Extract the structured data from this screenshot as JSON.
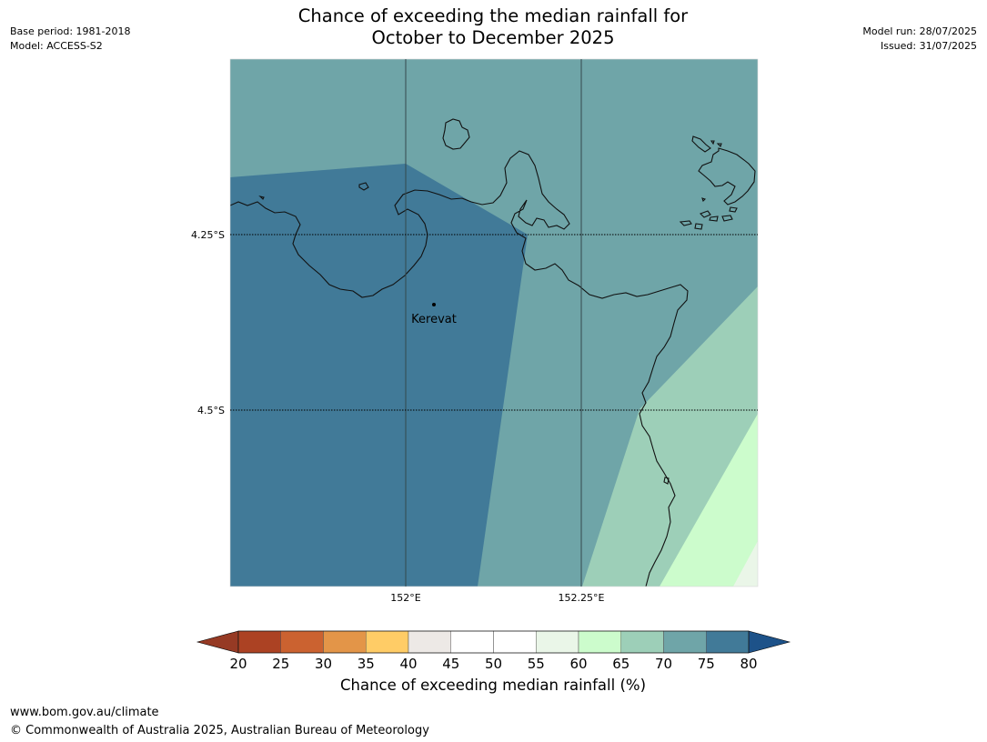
{
  "title": {
    "line1": "Chance of exceeding the median rainfall for",
    "line2": "October to December 2025"
  },
  "meta_left": {
    "base_period": "Base period: 1981-2018",
    "model": "Model: ACCESS-S2"
  },
  "meta_right": {
    "model_run": "Model run: 28/07/2025",
    "issued": "Issued: 31/07/2025"
  },
  "map": {
    "lat_labels": [
      "4.25°S",
      "4.5°S"
    ],
    "lon_labels": [
      "152°E",
      "152.25°E"
    ],
    "place": "Kerevat",
    "colors": {
      "c75_80": "#417a98",
      "c70_75": "#6fa5a8",
      "c65_70": "#9dcfb8",
      "c60_65": "#ccfccc",
      "c55_60": "#eaf6e8"
    }
  },
  "legend": {
    "ticks": [
      "20",
      "25",
      "30",
      "35",
      "40",
      "45",
      "50",
      "55",
      "60",
      "65",
      "70",
      "75",
      "80"
    ],
    "colors": [
      "#ac4223",
      "#cb6230",
      "#e39548",
      "#ffcc66",
      "#ede9e6",
      "#ffffff",
      "#ffffff",
      "#eaf6e8",
      "#ccfccc",
      "#9dcfb8",
      "#6fa5a8",
      "#417a98"
    ],
    "under_color": "#963a24",
    "over_color": "#1d5289",
    "label": "Chance of exceeding median rainfall (%)"
  },
  "footer": {
    "url": "www.bom.gov.au/climate",
    "copyright": "© Commonwealth of Australia 2025, Australian Bureau of Meteorology"
  }
}
